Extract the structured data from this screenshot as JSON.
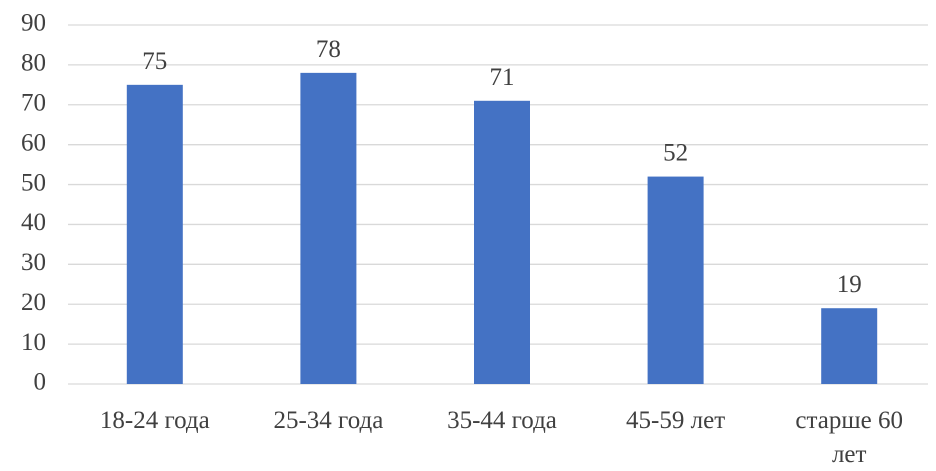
{
  "chart_data": {
    "type": "bar",
    "categories": [
      "18-24 года",
      "25-34 года",
      "35-44 года",
      "45-59 лет",
      "старше 60 лет"
    ],
    "values": [
      75,
      78,
      71,
      52,
      19
    ],
    "title": "",
    "xlabel": "",
    "ylabel": "",
    "ylim": [
      0,
      90
    ],
    "yticks": [
      0,
      10,
      20,
      30,
      40,
      50,
      60,
      70,
      80,
      90
    ],
    "grid": true,
    "legend": "none",
    "data_labels": true,
    "bar_color": "#4472c4"
  }
}
